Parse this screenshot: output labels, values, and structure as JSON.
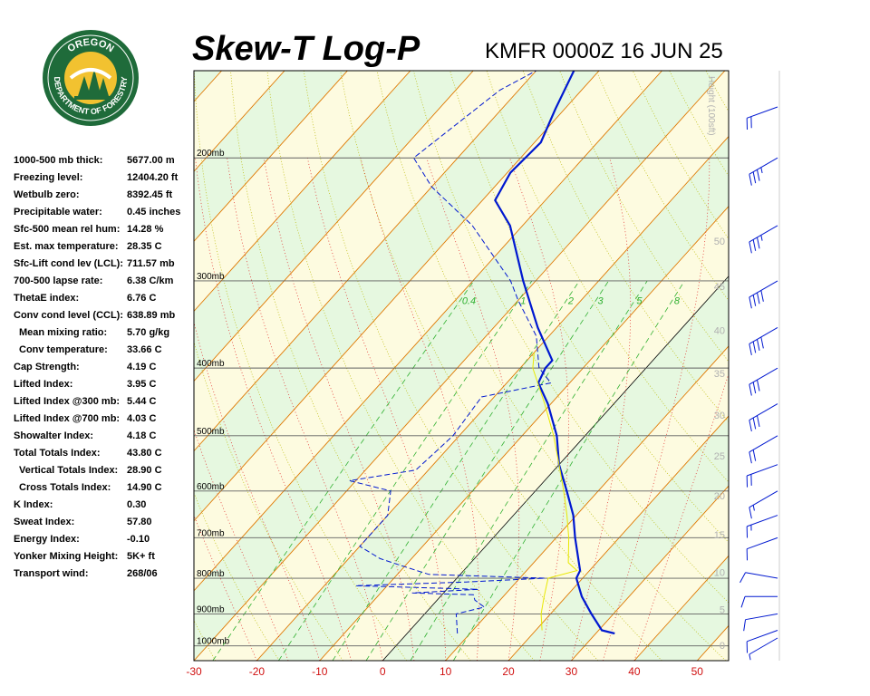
{
  "header": {
    "title": "Skew-T Log-P",
    "subtitle": "KMFR 0000Z 16 JUN 25"
  },
  "logo": {
    "top_text": "OREGON",
    "bottom_text": "DEPARTMENT OF FORESTRY",
    "ring_color": "#1f6b3a",
    "fill_color": "#f2c230"
  },
  "indices": [
    {
      "label": "1000-500 mb thick:",
      "value": "5677.00 m",
      "indent": false
    },
    {
      "label": "Freezing level:",
      "value": "12404.20 ft",
      "indent": false
    },
    {
      "label": "Wetbulb zero:",
      "value": "8392.45 ft",
      "indent": false
    },
    {
      "label": "Precipitable water:",
      "value": "0.45 inches",
      "indent": false
    },
    {
      "label": "Sfc-500 mean rel hum:",
      "value": "14.28 %",
      "indent": false
    },
    {
      "label": "Est. max temperature:",
      "value": "28.35 C",
      "indent": false
    },
    {
      "label": "Sfc-Lift cond lev (LCL):",
      "value": "711.57 mb",
      "indent": false
    },
    {
      "label": "700-500 lapse rate:",
      "value": "6.38 C/km",
      "indent": false
    },
    {
      "label": "ThetaE index:",
      "value": "6.76 C",
      "indent": false
    },
    {
      "label": "Conv cond level (CCL):",
      "value": "638.89 mb",
      "indent": false
    },
    {
      "label": "Mean mixing ratio:",
      "value": "5.70 g/kg",
      "indent": true
    },
    {
      "label": "Conv temperature:",
      "value": "33.66 C",
      "indent": true
    },
    {
      "label": "Cap Strength:",
      "value": "4.19 C",
      "indent": false
    },
    {
      "label": "Lifted Index:",
      "value": "3.95 C",
      "indent": false
    },
    {
      "label": "Lifted Index @300 mb:",
      "value": "5.44 C",
      "indent": false
    },
    {
      "label": "Lifted Index @700 mb:",
      "value": "4.03 C",
      "indent": false
    },
    {
      "label": "Showalter Index:",
      "value": "4.18 C",
      "indent": false
    },
    {
      "label": "Total Totals Index:",
      "value": "43.80 C",
      "indent": false
    },
    {
      "label": "Vertical Totals Index:",
      "value": "28.90 C",
      "indent": true
    },
    {
      "label": "Cross Totals Index:",
      "value": "14.90 C",
      "indent": true
    },
    {
      "label": "K Index:",
      "value": "0.30",
      "indent": false
    },
    {
      "label": "Sweat Index:",
      "value": "57.80",
      "indent": false
    },
    {
      "label": "Energy Index:",
      "value": "-0.10",
      "indent": false
    },
    {
      "label": "Yonker Mixing Height:",
      "value": "5K+ ft",
      "indent": false
    },
    {
      "label": "Transport wind:",
      "value": "268/06",
      "indent": false
    }
  ],
  "chart_data": {
    "type": "line",
    "xlim": [
      -30,
      55
    ],
    "pressure_range_mb": [
      1050,
      150
    ],
    "x_ticks": [
      "-30",
      "-20",
      "-10",
      "0",
      "10",
      "20",
      "30",
      "40",
      "50"
    ],
    "x_tick_values": [
      -30,
      -20,
      -10,
      0,
      10,
      20,
      30,
      40,
      50
    ],
    "pressure_levels": [
      {
        "p": 200,
        "label": "200mb"
      },
      {
        "p": 300,
        "label": "300mb"
      },
      {
        "p": 400,
        "label": "400mb"
      },
      {
        "p": 500,
        "label": "500mb"
      },
      {
        "p": 600,
        "label": "600mb"
      },
      {
        "p": 700,
        "label": "700mb"
      },
      {
        "p": 800,
        "label": "800mb"
      },
      {
        "p": 900,
        "label": "900mb"
      },
      {
        "p": 1000,
        "label": "1000mb"
      }
    ],
    "height_axis": {
      "label": "Height (100sft)",
      "ticks": [
        {
          "v": 0,
          "label": "0"
        },
        {
          "v": 5,
          "label": "5"
        },
        {
          "v": 10,
          "label": "10"
        },
        {
          "v": 15,
          "label": "15"
        },
        {
          "v": 20,
          "label": "20"
        },
        {
          "v": 25,
          "label": "25"
        },
        {
          "v": 30,
          "label": "30"
        },
        {
          "v": 35,
          "label": "35"
        },
        {
          "v": 40,
          "label": "40"
        },
        {
          "v": 45,
          "label": "45"
        },
        {
          "v": 50,
          "label": "50"
        }
      ]
    },
    "mixing_ratio_labels": [
      "0.4",
      "1",
      "2",
      "3",
      "5",
      "8"
    ],
    "mixing_ratio_values": [
      0.4,
      1,
      2,
      3,
      5,
      8
    ],
    "series": [
      {
        "color": "#0018d0",
        "style": "solid",
        "points": [
          {
            "p": 960,
            "t": 33.0
          },
          {
            "p": 950,
            "t": 30.5
          },
          {
            "p": 900,
            "t": 26.5
          },
          {
            "p": 850,
            "t": 22.5
          },
          {
            "p": 800,
            "t": 19.0
          },
          {
            "p": 780,
            "t": 18.5
          },
          {
            "p": 750,
            "t": 16.5
          },
          {
            "p": 700,
            "t": 13.0
          },
          {
            "p": 650,
            "t": 9.5
          },
          {
            "p": 600,
            "t": 5.0
          },
          {
            "p": 550,
            "t": 0.0
          },
          {
            "p": 500,
            "t": -4.5
          },
          {
            "p": 450,
            "t": -10.5
          },
          {
            "p": 420,
            "t": -15.0
          },
          {
            "p": 400,
            "t": -16.0
          },
          {
            "p": 390,
            "t": -16.0
          },
          {
            "p": 350,
            "t": -23.0
          },
          {
            "p": 300,
            "t": -32.0
          },
          {
            "p": 250,
            "t": -42.0
          },
          {
            "p": 230,
            "t": -48.0
          },
          {
            "p": 210,
            "t": -49.5
          },
          {
            "p": 190,
            "t": -49.0
          },
          {
            "p": 170,
            "t": -51.5
          },
          {
            "p": 150,
            "t": -54.0
          }
        ]
      },
      {
        "color": "#0018d0",
        "style": "dashed",
        "points": [
          {
            "p": 960,
            "t": 8.0
          },
          {
            "p": 900,
            "t": 5.0
          },
          {
            "p": 880,
            "t": 8.5
          },
          {
            "p": 860,
            "t": 6.0
          },
          {
            "p": 845,
            "t": 5.0
          },
          {
            "p": 840,
            "t": -5.0
          },
          {
            "p": 830,
            "t": 5.0
          },
          {
            "p": 820,
            "t": -15.0
          },
          {
            "p": 810,
            "t": 2.0
          },
          {
            "p": 800,
            "t": 14.0
          },
          {
            "p": 790,
            "t": -5.0
          },
          {
            "p": 770,
            "t": -10.0
          },
          {
            "p": 750,
            "t": -15.0
          },
          {
            "p": 720,
            "t": -20.0
          },
          {
            "p": 650,
            "t": -20.0
          },
          {
            "p": 600,
            "t": -23.0
          },
          {
            "p": 580,
            "t": -31.0
          },
          {
            "p": 560,
            "t": -22.0
          },
          {
            "p": 500,
            "t": -21.0
          },
          {
            "p": 440,
            "t": -22.0
          },
          {
            "p": 420,
            "t": -13.0
          },
          {
            "p": 400,
            "t": -17.0
          },
          {
            "p": 360,
            "t": -22.0
          },
          {
            "p": 320,
            "t": -30.0
          },
          {
            "p": 300,
            "t": -34.0
          },
          {
            "p": 250,
            "t": -48.0
          },
          {
            "p": 220,
            "t": -60.0
          },
          {
            "p": 200,
            "t": -67.0
          },
          {
            "p": 160,
            "t": -63.0
          },
          {
            "p": 150,
            "t": -60.0
          }
        ]
      },
      {
        "color": "#e8e800",
        "style": "solid",
        "points": [
          {
            "p": 950,
            "t": 21.0
          },
          {
            "p": 900,
            "t": 18.5
          },
          {
            "p": 850,
            "t": 16.5
          },
          {
            "p": 800,
            "t": 14.5
          },
          {
            "p": 780,
            "t": 18.0
          },
          {
            "p": 760,
            "t": 15.5
          },
          {
            "p": 700,
            "t": 12.0
          },
          {
            "p": 650,
            "t": 8.5
          },
          {
            "p": 600,
            "t": 4.5
          },
          {
            "p": 550,
            "t": 0.0
          },
          {
            "p": 500,
            "t": -5.0
          },
          {
            "p": 450,
            "t": -11.0
          },
          {
            "p": 400,
            "t": -18.0
          },
          {
            "p": 380,
            "t": -20.0
          }
        ]
      }
    ],
    "wind_barbs": [
      {
        "p": 1000,
        "dir": 240,
        "kt": 5
      },
      {
        "p": 950,
        "dir": 250,
        "kt": 10
      },
      {
        "p": 900,
        "dir": 260,
        "kt": 10
      },
      {
        "p": 850,
        "dir": 270,
        "kt": 10
      },
      {
        "p": 800,
        "dir": 280,
        "kt": 10
      },
      {
        "p": 700,
        "dir": 250,
        "kt": 10
      },
      {
        "p": 650,
        "dir": 250,
        "kt": 15
      },
      {
        "p": 600,
        "dir": 240,
        "kt": 15
      },
      {
        "p": 550,
        "dir": 250,
        "kt": 20
      },
      {
        "p": 500,
        "dir": 240,
        "kt": 20
      },
      {
        "p": 450,
        "dir": 240,
        "kt": 30
      },
      {
        "p": 400,
        "dir": 240,
        "kt": 30
      },
      {
        "p": 350,
        "dir": 240,
        "kt": 40
      },
      {
        "p": 300,
        "dir": 240,
        "kt": 40
      },
      {
        "p": 250,
        "dir": 240,
        "kt": 35
      },
      {
        "p": 200,
        "dir": 240,
        "kt": 35
      },
      {
        "p": 150,
        "dir": 250,
        "kt": 20
      }
    ],
    "colors": {
      "band_green": "#e6f8e0",
      "band_yellow": "#fdfbe0",
      "isotherm": "#e07800",
      "dry_adiabat": "#b8b800",
      "moist_adiabat": "#e02020",
      "mixing_ratio": "#30b030",
      "isobar": "#606060",
      "tick_label": "#d01010",
      "axis_label": "#b0b0b0"
    }
  }
}
